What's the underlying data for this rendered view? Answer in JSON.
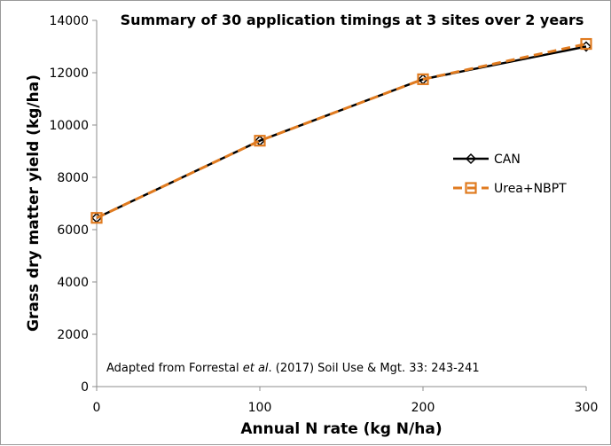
{
  "chart_data": {
    "type": "line",
    "title": "Summary of 30 application timings at 3 sites over 2 years",
    "xlabel": "Annual N rate (kg N/ha)",
    "ylabel": "Grass dry matter yield (kg/ha)",
    "x": [
      0,
      100,
      200,
      300
    ],
    "xlim": [
      0,
      300
    ],
    "ylim": [
      0,
      14000
    ],
    "xticks": [
      "0",
      "100",
      "200",
      "300"
    ],
    "yticks": [
      "0",
      "2000",
      "4000",
      "6000",
      "8000",
      "10000",
      "12000",
      "14000"
    ],
    "grid": false,
    "legend_position": "right",
    "series": [
      {
        "name": "CAN",
        "values": [
          6450,
          9400,
          11750,
          13000
        ],
        "color": "#000000",
        "marker": "diamond",
        "dash": "solid"
      },
      {
        "name": "Urea+NBPT",
        "values": [
          6450,
          9400,
          11750,
          13100
        ],
        "color": "#E07B20",
        "marker": "square",
        "dash": "dashed"
      }
    ],
    "annotation": {
      "prefix": "Adapted from Forrestal ",
      "italic": "et al",
      "suffix": ". (2017) Soil Use & Mgt. 33: 243-241"
    }
  }
}
